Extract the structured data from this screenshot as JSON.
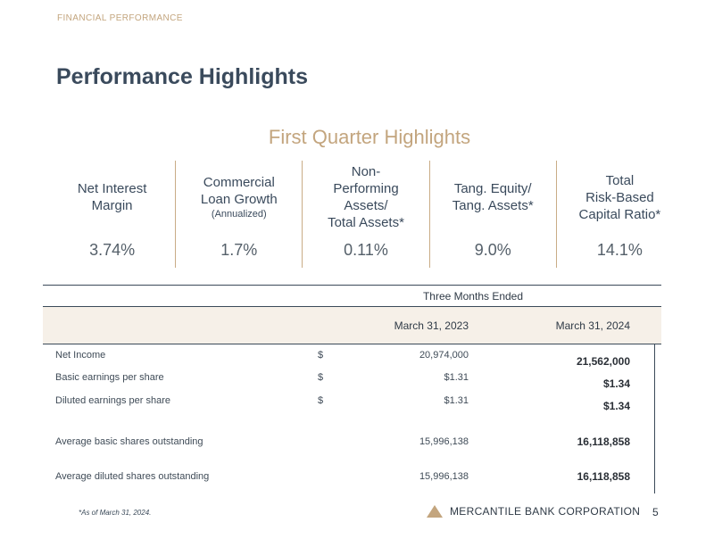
{
  "header": {
    "section": "FINANCIAL PERFORMANCE",
    "title": "Performance Highlights"
  },
  "highlights": {
    "title": "First Quarter Highlights",
    "metrics": [
      {
        "label_lines": [
          "Net Interest",
          "Margin"
        ],
        "value": "3.74%"
      },
      {
        "label_lines": [
          "Commercial",
          "Loan Growth"
        ],
        "sublabel": "(Annualized)",
        "value": "1.7%"
      },
      {
        "label_lines": [
          "Non-",
          "Performing",
          "Assets/",
          "Total Assets*"
        ],
        "value": "0.11%"
      },
      {
        "label_lines": [
          "Tang. Equity/",
          "Tang. Assets*"
        ],
        "value": "9.0%"
      },
      {
        "label_lines": [
          "Total",
          "Risk-Based",
          "Capital Ratio*"
        ],
        "value": "14.1%"
      }
    ]
  },
  "table": {
    "group_header": "Three Months Ended",
    "columns": [
      "March 31, 2023",
      "March 31, 2024"
    ],
    "rows": [
      {
        "label": "Net Income",
        "currency": "$",
        "v2023": "20,974,000",
        "v2024": "21,562,000"
      },
      {
        "label": "Basic earnings per share",
        "currency": "$",
        "v2023": "$1.31",
        "v2024": "$1.34"
      },
      {
        "label": "Diluted earnings per share",
        "currency": "$",
        "v2023": "$1.31",
        "v2024": "$1.34"
      },
      {
        "label": "Average basic shares outstanding",
        "currency": "",
        "v2023": "15,996,138",
        "v2024": "16,118,858"
      },
      {
        "label": "Average diluted shares outstanding",
        "currency": "",
        "v2023": "15,996,138",
        "v2024": "16,118,858"
      }
    ]
  },
  "footer": {
    "footnote": "*As of March 31, 2024.",
    "company": "MERCANTILE BANK CORPORATION",
    "page": "5"
  },
  "colors": {
    "accent_gold": "#c3a57e",
    "title_navy": "#3a4a5c",
    "header_band": "#f6f0e8"
  }
}
